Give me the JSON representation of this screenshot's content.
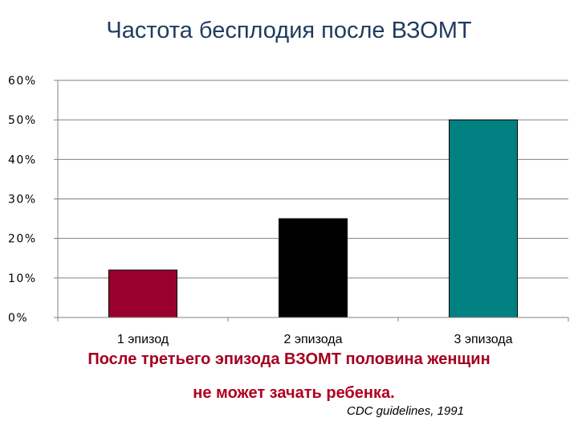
{
  "title": "Частота бесплодия после ВЗОМТ",
  "colors": {
    "title": "#1f3b5f",
    "caption": "#a3001e",
    "caption_second": "#b0001e"
  },
  "chart_data": {
    "type": "bar",
    "title": "",
    "xlabel": "",
    "ylabel": "",
    "categories": [
      "1 эпизод",
      "2 эпизода",
      "3 эпизода"
    ],
    "values": [
      12,
      25,
      50
    ],
    "bar_colors": [
      "#99002e",
      "#000000",
      "#008080"
    ],
    "ylim": [
      0,
      60
    ],
    "yticks": [
      0,
      10,
      20,
      30,
      40,
      50,
      60
    ],
    "ytick_labels": [
      "0%",
      "10%",
      "20%",
      "30%",
      "40%",
      "50%",
      "60%"
    ],
    "grid": true,
    "legend": "none"
  },
  "caption": {
    "line1": "После третьего эпизода ВЗОМТ половина женщин",
    "line2": "не может зачать ребенка."
  },
  "source": "CDC guidelines, 1991"
}
